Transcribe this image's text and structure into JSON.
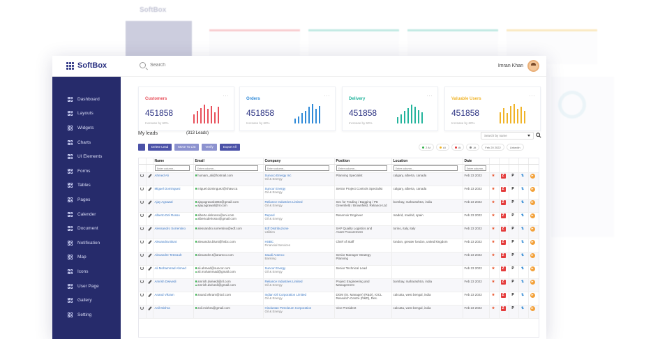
{
  "app": {
    "name": "SoftBox"
  },
  "search": {
    "placeholder": "Search"
  },
  "user": {
    "name": "Imran Khan"
  },
  "sidebar": {
    "items": [
      {
        "label": "Dashboard"
      },
      {
        "label": "Layouts"
      },
      {
        "label": "Widgets"
      },
      {
        "label": "Charts"
      },
      {
        "label": "UI Elements"
      },
      {
        "label": "Forms"
      },
      {
        "label": "Tables"
      },
      {
        "label": "Pages"
      },
      {
        "label": "Calender"
      },
      {
        "label": "Document"
      },
      {
        "label": "Notification"
      },
      {
        "label": "Map"
      },
      {
        "label": "Icons"
      },
      {
        "label": "User Page"
      },
      {
        "label": "Gallery"
      },
      {
        "label": "Setting"
      }
    ]
  },
  "cards": [
    {
      "title": "Customers",
      "value": "451858",
      "sub": "Increase by 60%",
      "color": "#e8505b",
      "bars": [
        0.45,
        0.6,
        0.75,
        0.9,
        0.7,
        0.85,
        0.55,
        0.8
      ]
    },
    {
      "title": "Orders",
      "value": "451858",
      "sub": "Increase by 60%",
      "color": "#2f8ad8",
      "bars": [
        0.25,
        0.35,
        0.5,
        0.6,
        0.8,
        0.95,
        0.7,
        0.85
      ]
    },
    {
      "title": "Delivery",
      "value": "451858",
      "sub": "Increase by 60%",
      "color": "#23b49c",
      "bars": [
        0.3,
        0.45,
        0.6,
        0.75,
        0.9,
        0.8,
        0.65,
        0.55
      ]
    },
    {
      "title": "Valuable Users",
      "value": "451858",
      "sub": "Increase by 60%",
      "color": "#f0b429",
      "bars": [
        0.55,
        0.75,
        0.5,
        0.85,
        0.95,
        0.7,
        0.8,
        0.6
      ]
    }
  ],
  "leads": {
    "title": "My leads",
    "count": "(313 Leads)",
    "select_placeholder": "Search by name",
    "toolbar": {
      "delete": "Delete Lead",
      "move": "Move To List",
      "verify": "Verify",
      "export": "Export All"
    },
    "filters": [
      {
        "label": "2 At",
        "color": "#37b24d"
      },
      {
        "label": "At",
        "color": "#f0b429"
      },
      {
        "label": "At",
        "color": "#e43c3c"
      },
      {
        "label": "At",
        "color": "#888888"
      },
      {
        "label": "Feb 20 2022",
        "color": ""
      },
      {
        "label": "Linkedin",
        "color": ""
      }
    ],
    "columns": [
      "Name",
      "Email",
      "Company",
      "Position",
      "Location",
      "Date"
    ],
    "filter_placeholder": "Enter column...",
    "rows": [
      {
        "name": "Ahmed Ali",
        "email1": "humam_ali@hotmail.com",
        "email2": "",
        "company": "Sunoco Energy Inc",
        "industry": "Oil & Energy",
        "position": "Planning Specialist",
        "position2": "",
        "location": "calgary, alberta, canada",
        "date": "Feb 23 2022"
      },
      {
        "name": "Miguel Dominguez",
        "email1": "miguel.dominguez@shaw.ca",
        "email2": "",
        "company": "Suncor Energy",
        "industry": "Oil & Energy",
        "position": "Senior Project Controls Specialist",
        "position2": "",
        "location": "calgary, alberta, canada",
        "date": "Feb 23 2022"
      },
      {
        "name": "Ajay Agrawal",
        "email1": "ajayagrawal1982@gmail.com",
        "email2": "ajay.agrawal@ril.com",
        "company": "Reliance Industries Limited",
        "industry": "Oil & Energy",
        "position": "Sec for Trading / Bagging / PE",
        "position2": "Greenfield / Brownfield, Reliance Ltd",
        "location": "bombay, maharashtra, india",
        "date": "Feb 23 2022"
      },
      {
        "name": "Alberto Del Rosso",
        "email1": "alberto.delrosso@eni.com",
        "email2": "albertodelrosso@gmail.com",
        "company": "Repsol",
        "industry": "Oil & Energy",
        "position": "Reservoir Engineer",
        "position2": "",
        "location": "madrid, madrid, spain",
        "date": "Feb 23 2022"
      },
      {
        "name": "Alessandro Sorrentino",
        "email1": "alessandro.sorrentino@edf.com",
        "email2": "",
        "company": "Edf Distribuzione",
        "industry": "Utilities",
        "position": "SAP Quality Logistics and",
        "position2": "Asset Procurement",
        "location": "torino, italy, italy",
        "date": "Feb 23 2022"
      },
      {
        "name": "Alexandra Blunt",
        "email1": "alexandra.blunt@hsbc.com",
        "email2": "",
        "company": "HSBC",
        "industry": "Financial Services",
        "position": "Chief of Staff",
        "position2": "",
        "location": "london, greater london, united kingdom",
        "date": "Feb 23 2022"
      },
      {
        "name": "Alexandre Tetreault",
        "email1": "alexandre.t@aramco.com",
        "email2": "",
        "company": "Saudi Aramco",
        "industry": "Banking",
        "position": "Senior Manager Strategy",
        "position2": "Planning",
        "location": "",
        "date": "Feb 23 2022"
      },
      {
        "name": "Ali Mohammad Ahmed",
        "email1": "ali.ahmed@suncor.com",
        "email2": "ali.mohammad@gmail.com",
        "company": "Suncor Energy",
        "industry": "Oil & Energy",
        "position": "Senior Technical Lead",
        "position2": "",
        "location": "",
        "date": "Feb 23 2022"
      },
      {
        "name": "Amrish Dwivedi",
        "email1": "amrish.dwivedi@ril.com",
        "email2": "amrish.dwivedi@gmail.com",
        "company": "Reliance Industries Limited",
        "industry": "Oil & Energy",
        "position": "Project Engineering and",
        "position2": "Management",
        "location": "bombay, maharashtra, india",
        "date": "Feb 23 2022"
      },
      {
        "name": "Anand Vikram",
        "email1": "anand.vikram@iocl.com",
        "email2": "",
        "company": "Indian Oil Corporation Limited",
        "industry": "Oil & Energy",
        "position": "DGM (Sr. Manager) (R&D), IOCL",
        "position2": "Research Centre (R&D), Res.",
        "location": "calcutta, west bengal, india",
        "date": "Feb 23 2022"
      },
      {
        "name": "Anil Mishra",
        "email1": "anil.mishra@gmail.com",
        "email2": "",
        "company": "Hindustan Petroleum Corporation",
        "industry": "Oil & Energy",
        "position": "Vice President",
        "position2": "",
        "location": "calcutta, west bengal, india",
        "date": "Feb 23 2022"
      }
    ]
  },
  "colors": {
    "sidebar": "#262b6b",
    "accent": "#4b52a8",
    "link": "#3b78c4"
  }
}
